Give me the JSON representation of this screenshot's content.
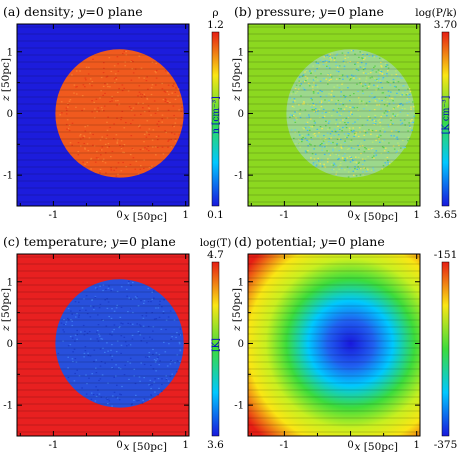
{
  "chart_data": [
    {
      "type": "heatmap",
      "title": "(a) density; y=0 plane",
      "title_parts": [
        "(a) density; ",
        "y",
        "=0 plane"
      ],
      "xlabel": "x [50pc]",
      "ylabel": "z [50pc]",
      "xticks": [
        "-1",
        "0",
        "1"
      ],
      "yticks": [
        "1",
        "0",
        "-1"
      ],
      "colorbar": {
        "label": "ρ",
        "max": "1.2",
        "min": "0.1",
        "unit": "n [cm⁻³]"
      },
      "region": "disk",
      "inside_color": "#f05a1e",
      "outside_color": "#1c1cdc",
      "fill": "mottled"
    },
    {
      "type": "heatmap",
      "title": "(b) pressure; y=0 plane",
      "title_parts": [
        "(b) pressure; ",
        "y",
        "=0 plane"
      ],
      "xlabel": "x [50pc]",
      "ylabel": "z [50pc]",
      "xticks": [
        "-1",
        "0",
        "1"
      ],
      "yticks": [
        "1",
        "0",
        "-1"
      ],
      "colorbar": {
        "label": "log(P/k)",
        "max": "3.70",
        "min": "3.65",
        "unit": "[K cm⁻³]"
      },
      "region": "disk",
      "inside_color": "#9cd88c",
      "outside_color": "#8cd820",
      "fill": "noisy"
    },
    {
      "type": "heatmap",
      "title": "(c) temperature; y=0 plane",
      "title_parts": [
        "(c) temperature; ",
        "y",
        "=0 plane"
      ],
      "xlabel": "x [50pc]",
      "ylabel": "z [50pc]",
      "xticks": [
        "-1",
        "0",
        "1"
      ],
      "yticks": [
        "1",
        "0",
        "-1"
      ],
      "colorbar": {
        "label": "log(T)",
        "max": "4.7",
        "min": "3.6",
        "unit": "[K]"
      },
      "region": "disk",
      "inside_color": "#2850dc",
      "outside_color": "#e82020",
      "fill": "mottled"
    },
    {
      "type": "heatmap",
      "title": "(d) potential; y=0 plane",
      "title_parts": [
        "(d) potential; ",
        "y",
        "=0 plane"
      ],
      "xlabel": "x [50pc]",
      "ylabel": "z [50pc]",
      "xticks": [
        "-1",
        "0",
        "1"
      ],
      "yticks": [
        "1",
        "0",
        "-1"
      ],
      "colorbar": {
        "label": "",
        "max": "-151",
        "min": "-375",
        "unit": ""
      },
      "region": "radial",
      "fill": "smooth"
    }
  ]
}
